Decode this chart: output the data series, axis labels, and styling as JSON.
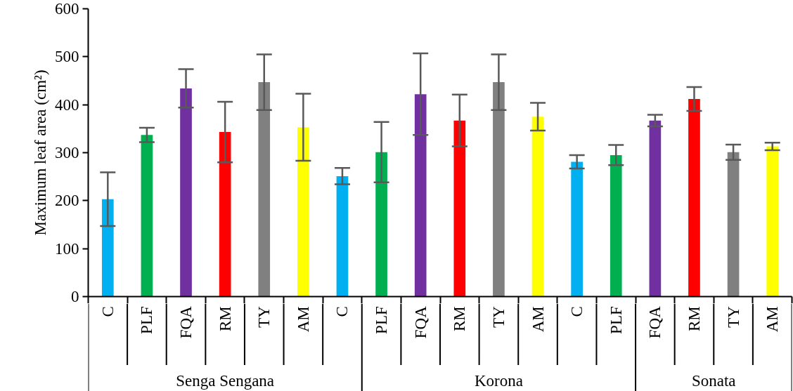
{
  "chart_data": {
    "type": "bar",
    "ylabel": "Maximum leaf area (cm²)",
    "categories": [
      "C",
      "PLF",
      "FQA",
      "RM",
      "TY",
      "AM",
      "C",
      "PLF",
      "FQA",
      "RM",
      "TY",
      "AM",
      "C",
      "PLF",
      "FQA",
      "RM",
      "TY",
      "AM"
    ],
    "values": [
      203,
      337,
      434,
      343,
      447,
      353,
      251,
      301,
      422,
      367,
      447,
      375,
      281,
      295,
      367,
      412,
      301,
      313
    ],
    "errors": [
      56,
      15,
      40,
      63,
      58,
      70,
      17,
      63,
      85,
      54,
      58,
      29,
      14,
      21,
      12,
      25,
      16,
      8
    ],
    "colors": [
      "#00b0f0",
      "#00b050",
      "#7030a0",
      "#ff0000",
      "#808080",
      "#ffff00",
      "#00b0f0",
      "#00b050",
      "#7030a0",
      "#ff0000",
      "#808080",
      "#ffff00",
      "#00b0f0",
      "#00b050",
      "#7030a0",
      "#ff0000",
      "#808080",
      "#ffff00"
    ],
    "ylim": [
      0,
      600
    ],
    "yticks": [
      0,
      100,
      200,
      300,
      400,
      500,
      600
    ],
    "grid": false,
    "annotations": [
      "Senga Sengana",
      "Korona",
      "Sonata"
    ]
  }
}
